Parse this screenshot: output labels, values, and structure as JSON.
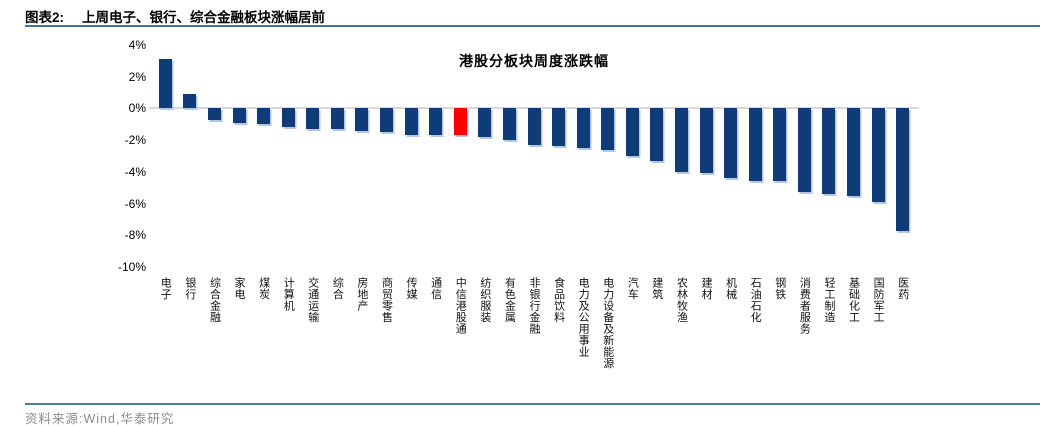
{
  "header": {
    "figure_label": "图表2:",
    "title": "上周电子、银行、综合金融板块涨幅居前"
  },
  "chart_data": {
    "type": "bar",
    "title": "港股分板块周度涨跌幅",
    "categories": [
      "电子",
      "银行",
      "综合金融",
      "家电",
      "煤炭",
      "计算机",
      "交通运输",
      "综合",
      "房地产",
      "商贸零售",
      "传媒",
      "通信",
      "中信港股通",
      "纺织服装",
      "有色金属",
      "非银行金融",
      "食品饮料",
      "电力及公用事业",
      "电力设备及新能源",
      "汽车",
      "建筑",
      "农林牧渔",
      "建材",
      "机械",
      "石油石化",
      "钢铁",
      "消费者服务",
      "轻工制造",
      "基础化工",
      "国防军工",
      "医药"
    ],
    "values": [
      3.1,
      0.9,
      -0.7,
      -0.9,
      -1.0,
      -1.2,
      -1.3,
      -1.3,
      -1.4,
      -1.5,
      -1.7,
      -1.7,
      -1.7,
      -1.8,
      -2.0,
      -2.3,
      -2.4,
      -2.5,
      -2.6,
      -3.0,
      -3.3,
      -4.0,
      -4.1,
      -4.4,
      -4.6,
      -4.6,
      -5.3,
      -5.4,
      -5.5,
      -5.9,
      -7.7
    ],
    "unit": "%",
    "ylim": [
      -10,
      4
    ],
    "ytick_labels": [
      "4%",
      "2%",
      "0%",
      "-2%",
      "-4%",
      "-6%",
      "-8%",
      "-10%"
    ],
    "grid": "zero-line-only",
    "legend": "none",
    "highlight_category": "中信港股通",
    "bar_color": "#0f3c78",
    "highlight_color": "#ff0000",
    "zero_line_color": "#d9d9d9"
  },
  "footer": {
    "source": "资料来源:Wind,华泰研究"
  },
  "colors": {
    "header_rule": "#4a6fa8",
    "footer_rule": "#4e7e8e",
    "source_text": "#8c8c8c"
  }
}
